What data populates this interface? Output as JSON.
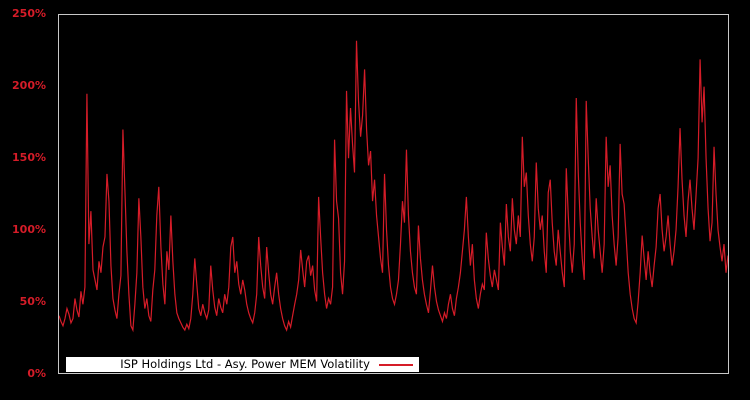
{
  "chart_data": {
    "type": "line",
    "background_color": "#000000",
    "plot_border_color": "#c8c8c8",
    "y_axis": {
      "ticks_top_to_bottom": [
        "250%",
        "200%",
        "150%",
        "100%",
        "50%",
        "0%"
      ],
      "range_pct": [
        0,
        250
      ],
      "label_color": "#d51c28"
    },
    "x_axis": {
      "tick_labels": []
    },
    "legend": {
      "label": "ISP Holdings Ltd - Asy. Power MEM Volatility",
      "background": "#ffffff",
      "text_color": "#000000",
      "position": "bottom-left-inside"
    },
    "series": [
      {
        "name": "ISP Holdings Ltd - Asy. Power MEM Volatility",
        "color": "#d51c28",
        "unit": "percent",
        "values_pct": [
          40,
          36,
          33,
          38,
          45,
          41,
          35,
          38,
          52,
          44,
          39,
          57,
          48,
          60,
          195,
          90,
          113,
          72,
          65,
          58,
          78,
          70,
          88,
          95,
          139,
          120,
          75,
          52,
          44,
          38,
          55,
          68,
          170,
          128,
          85,
          55,
          33,
          30,
          48,
          70,
          122,
          95,
          60,
          45,
          52,
          40,
          36,
          58,
          72,
          110,
          130,
          88,
          62,
          48,
          85,
          72,
          110,
          78,
          55,
          42,
          38,
          35,
          32,
          30,
          34,
          31,
          38,
          55,
          80,
          62,
          45,
          40,
          48,
          42,
          38,
          44,
          75,
          58,
          46,
          40,
          52,
          46,
          42,
          55,
          48,
          60,
          88,
          95,
          70,
          78,
          62,
          55,
          65,
          58,
          48,
          42,
          38,
          35,
          42,
          55,
          95,
          75,
          60,
          52,
          88,
          70,
          55,
          48,
          60,
          70,
          55,
          45,
          38,
          33,
          30,
          36,
          32,
          40,
          48,
          55,
          65,
          86,
          72,
          60,
          78,
          82,
          68,
          75,
          58,
          50,
          123,
          95,
          70,
          55,
          45,
          52,
          48,
          60,
          163,
          120,
          108,
          70,
          55,
          78,
          197,
          150,
          185,
          160,
          140,
          232,
          190,
          165,
          180,
          212,
          170,
          145,
          155,
          120,
          135,
          110,
          95,
          80,
          70,
          139,
          100,
          75,
          60,
          52,
          48,
          55,
          65,
          90,
          120,
          105,
          156,
          110,
          85,
          70,
          60,
          55,
          103,
          80,
          65,
          55,
          48,
          42,
          58,
          75,
          60,
          50,
          44,
          40,
          36,
          42,
          38,
          48,
          55,
          45,
          40,
          52,
          60,
          70,
          85,
          100,
          123,
          95,
          75,
          90,
          65,
          52,
          45,
          55,
          62,
          58,
          98,
          80,
          68,
          60,
          72,
          65,
          58,
          105,
          88,
          75,
          118,
          95,
          85,
          122,
          100,
          90,
          110,
          95,
          165,
          130,
          140,
          110,
          90,
          78,
          95,
          147,
          115,
          100,
          110,
          85,
          70,
          126,
          135,
          105,
          85,
          75,
          100,
          85,
          70,
          60,
          143,
          110,
          85,
          70,
          90,
          192,
          140,
          105,
          80,
          65,
          190,
          150,
          115,
          95,
          80,
          122,
          100,
          85,
          70,
          90,
          165,
          130,
          145,
          110,
          90,
          75,
          95,
          160,
          125,
          118,
          95,
          70,
          55,
          45,
          38,
          35,
          50,
          70,
          96,
          80,
          65,
          85,
          70,
          60,
          75,
          88,
          115,
          125,
          100,
          85,
          95,
          110,
          90,
          75,
          85,
          100,
          130,
          171,
          135,
          110,
          95,
          120,
          135,
          115,
          100,
          125,
          150,
          219,
          175,
          200,
          150,
          115,
          92,
          105,
          158,
          125,
          100,
          88,
          78,
          90,
          70,
          82
        ]
      }
    ]
  }
}
